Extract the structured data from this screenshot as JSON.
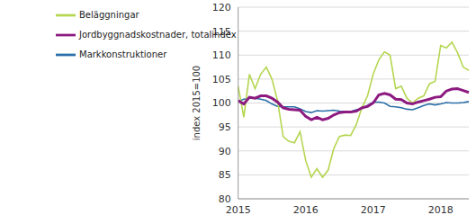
{
  "chart_data": {
    "type": "line",
    "y_label": "index 2015=100",
    "categories": [
      "2015",
      null,
      null,
      null,
      null,
      null,
      null,
      null,
      null,
      null,
      null,
      null,
      "2016",
      null,
      null,
      null,
      null,
      null,
      null,
      null,
      null,
      null,
      null,
      null,
      "2017",
      null,
      null,
      null,
      null,
      null,
      null,
      null,
      null,
      null,
      null,
      null,
      "2018",
      null,
      null,
      null,
      null,
      null
    ],
    "series": [
      {
        "name": "Markkonstruktioner",
        "color": "#2a6fa8",
        "values": [
          100.3,
          100.8,
          101,
          101,
          100.8,
          100.5,
          99.8,
          99.3,
          99.2,
          99.2,
          99.2,
          98.8,
          98.2,
          98,
          98.4,
          98.3,
          98.4,
          98.5,
          98.3,
          98.2,
          98.2,
          98.6,
          98.8,
          99.5,
          100.2,
          100.2,
          100,
          99.3,
          99.2,
          99,
          98.7,
          98.6,
          99,
          99.5,
          99.8,
          99.6,
          99.8,
          100.1,
          100,
          100,
          100.1,
          100.3
        ]
      },
      {
        "name": "Beläggningar",
        "color": "#b5d651",
        "values": [
          103.5,
          97,
          106,
          103,
          106,
          107.5,
          105,
          100.5,
          93,
          92,
          91.7,
          94,
          88,
          84.5,
          86.3,
          84.5,
          86,
          90.5,
          93,
          93.3,
          93.2,
          95.5,
          99,
          101.5,
          106,
          109,
          110.7,
          110,
          103,
          103.5,
          101,
          100,
          101,
          101.5,
          104,
          104.5,
          112,
          111.5,
          112.7,
          110.5,
          107.5,
          106.8
        ]
      },
      {
        "name": "Jordbyggnadskostnader, totalindex",
        "color": "#8c1a80",
        "values": [
          100.5,
          99.8,
          101.2,
          101,
          101.5,
          101.5,
          101,
          100.2,
          99,
          98.7,
          98.6,
          98.5,
          97.2,
          96.5,
          97,
          96.5,
          96.8,
          97.5,
          98,
          98.1,
          98.1,
          98.3,
          99,
          99.3,
          100,
          101.7,
          102,
          101.7,
          100.8,
          100.7,
          100,
          99.8,
          100.2,
          100.5,
          100.8,
          101.2,
          101.3,
          102.5,
          102.9,
          103,
          102.6,
          102.2
        ]
      }
    ],
    "ylim": [
      80,
      120
    ],
    "yticks": [
      80,
      85,
      90,
      95,
      100,
      105,
      110,
      115,
      120
    ],
    "grid": true,
    "legend": "upper left"
  }
}
